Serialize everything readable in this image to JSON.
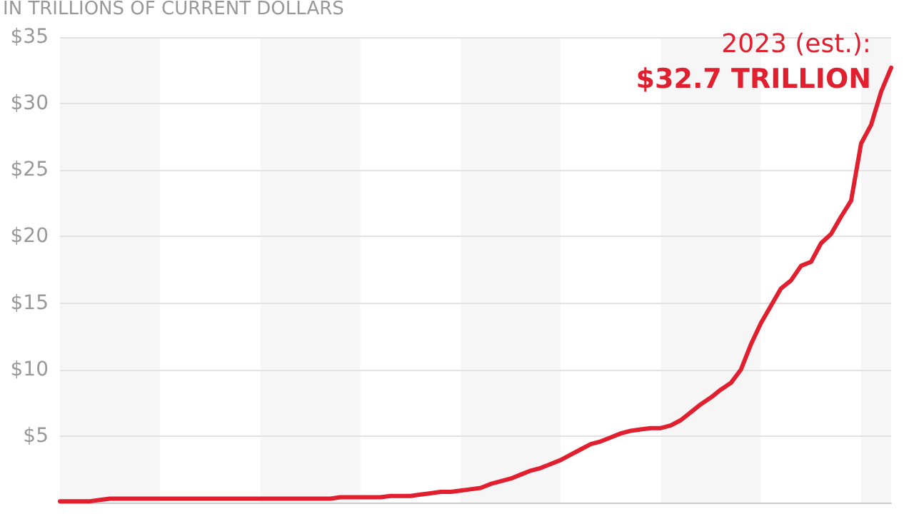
{
  "chart_data": {
    "type": "line",
    "subtitle": "IN TRILLIONS OF CURRENT DOLLARS",
    "categories": [
      null,
      null,
      null,
      null,
      null,
      null,
      null,
      null,
      null,
      null,
      null,
      null,
      null,
      null,
      null,
      null,
      null,
      null,
      null,
      null,
      null,
      null,
      null,
      null,
      null,
      null,
      null,
      null,
      null,
      null,
      null,
      null,
      null,
      null,
      null,
      null,
      null,
      null,
      null,
      null,
      null,
      null,
      null,
      null,
      null,
      null,
      null,
      null,
      null,
      null,
      null,
      null,
      null,
      null,
      null,
      null,
      null,
      null,
      null,
      null,
      null,
      null,
      null,
      null,
      null,
      null,
      null,
      null,
      null,
      null,
      null,
      null,
      null,
      null,
      null,
      null,
      null,
      null,
      null,
      null,
      null,
      null,
      null,
      null
    ],
    "series": [
      {
        "color": "#e0202f",
        "values": [
          0.1,
          0.1,
          0.1,
          0.1,
          0.2,
          0.3,
          0.3,
          0.3,
          0.3,
          0.3,
          0.3,
          0.3,
          0.3,
          0.3,
          0.3,
          0.3,
          0.3,
          0.3,
          0.3,
          0.3,
          0.3,
          0.3,
          0.3,
          0.3,
          0.3,
          0.3,
          0.3,
          0.3,
          0.4,
          0.4,
          0.4,
          0.4,
          0.4,
          0.5,
          0.5,
          0.5,
          0.6,
          0.7,
          0.8,
          0.8,
          0.9,
          1.0,
          1.1,
          1.4,
          1.6,
          1.8,
          2.1,
          2.4,
          2.6,
          2.9,
          3.2,
          3.6,
          4.0,
          4.4,
          4.6,
          4.9,
          5.2,
          5.4,
          5.5,
          5.6,
          5.6,
          5.8,
          6.2,
          6.8,
          7.4,
          7.9,
          8.5,
          9.0,
          10.0,
          11.9,
          13.5,
          14.8,
          16.1,
          16.7,
          17.8,
          18.1,
          19.5,
          20.2,
          21.5,
          22.7,
          27.0,
          28.4,
          30.9,
          32.7
        ]
      }
    ],
    "ylim": [
      0,
      35
    ],
    "yticks": [
      {
        "value": 5,
        "label": "$5"
      },
      {
        "value": 10,
        "label": "$10"
      },
      {
        "value": 15,
        "label": "$15"
      },
      {
        "value": 20,
        "label": "$20"
      },
      {
        "value": 25,
        "label": "$25"
      },
      {
        "value": 30,
        "label": "$30"
      },
      {
        "value": 35,
        "label": "$35"
      }
    ],
    "grid": "y",
    "tick_labels": "y",
    "annotations": [
      "2023 (est.):",
      "$32.7 TRILLION"
    ]
  }
}
